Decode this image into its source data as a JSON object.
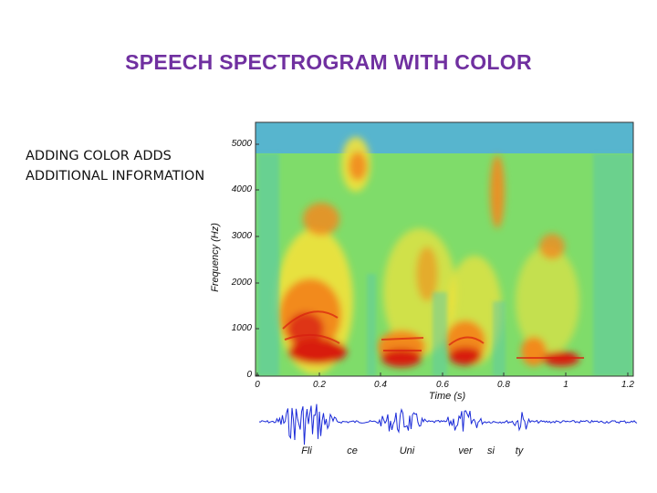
{
  "slide": {
    "title": "SPEECH SPECTROGRAM WITH COLOR",
    "side_text": [
      "ADDING COLOR ADDS",
      "ADDITIONAL INFORMATION"
    ]
  },
  "spectrogram": {
    "y_axis_label": "Frequency (Hz)",
    "x_axis_label": "Time (s)",
    "y_ticks": [
      "5000",
      "4000",
      "3000",
      "2000",
      "1000",
      "0"
    ],
    "x_ticks": [
      "0",
      "0.2",
      "0.4",
      "0.6",
      "0.8",
      "1",
      "1.2"
    ],
    "colors": {
      "background": "#7fdc6a",
      "low": "#4aa8f0",
      "mid": "#f2e23a",
      "high": "#f28a1e",
      "peak": "#d81e10"
    }
  },
  "waveform": {
    "color": "#1a2ad8",
    "syllables": [
      "Fli",
      "ce",
      "Uni",
      "ver",
      "si",
      "ty"
    ]
  }
}
